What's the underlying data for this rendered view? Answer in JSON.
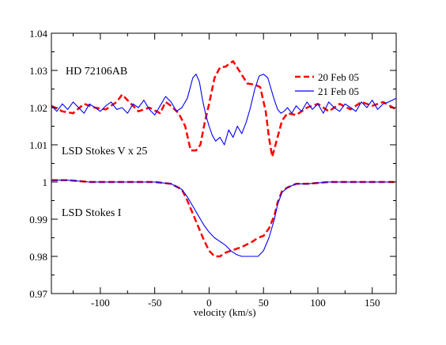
{
  "chart_data": {
    "type": "line",
    "title": "",
    "xlabel": "velocity (km/s)",
    "ylabel": "",
    "xlim": [
      -145,
      172
    ],
    "ylim": [
      0.97,
      1.04
    ],
    "xticks": [
      -100,
      -50,
      0,
      50,
      100,
      150
    ],
    "yticks": [
      0.97,
      0.98,
      0.99,
      1,
      1.01,
      1.02,
      1.03,
      1.04
    ],
    "xtick_labels": [
      "-100",
      "-50",
      "0",
      "50",
      "100",
      "150"
    ],
    "ytick_labels": [
      "0.97",
      "0.98",
      "0.99",
      "1",
      "1.01",
      "1.02",
      "1.03",
      "1.04"
    ],
    "grid": false,
    "legend_position": "top-right",
    "annotations": {
      "star": "HD 72106AB",
      "stokes_v": "LSD Stokes V x 25",
      "stokes_i": "LSD Stokes I"
    },
    "series": [
      {
        "name": "20 Feb 05",
        "color": "#ff0000",
        "dash": "dashed",
        "stokes_v": {
          "x": [
            -145,
            -135,
            -125,
            -115,
            -105,
            -95,
            -85,
            -80,
            -75,
            -65,
            -55,
            -45,
            -40,
            -35,
            -28,
            -22,
            -17,
            -12,
            -8,
            -4,
            0,
            5,
            10,
            15,
            22,
            28,
            35,
            42,
            47,
            52,
            55,
            58,
            62,
            67,
            72,
            80,
            90,
            100,
            110,
            120,
            130,
            140,
            150,
            160,
            172
          ],
          "y": [
            1.0205,
            1.019,
            1.0185,
            1.021,
            1.02,
            1.0195,
            1.0215,
            1.0235,
            1.022,
            1.019,
            1.02,
            1.0185,
            1.0215,
            1.0205,
            1.0185,
            1.015,
            1.0085,
            1.0085,
            1.01,
            1.016,
            1.021,
            1.028,
            1.0308,
            1.031,
            1.0325,
            1.0298,
            1.0265,
            1.0262,
            1.0255,
            1.019,
            1.012,
            1.0068,
            1.011,
            1.0165,
            1.0185,
            1.018,
            1.02,
            1.021,
            1.019,
            1.021,
            1.0195,
            1.0215,
            1.0205,
            1.0215,
            1.0195
          ]
        },
        "stokes_i": {
          "x": [
            -145,
            -130,
            -110,
            -90,
            -70,
            -50,
            -35,
            -25,
            -20,
            -15,
            -10,
            -5,
            0,
            5,
            10,
            15,
            20,
            30,
            40,
            45,
            50,
            55,
            60,
            63,
            67,
            72,
            80,
            90,
            110,
            130,
            150,
            172
          ],
          "y": [
            1.0005,
            1.0005,
            1.0,
            1.0,
            1.0,
            1.0,
            0.9995,
            0.998,
            0.995,
            0.9915,
            0.988,
            0.9845,
            0.9815,
            0.98,
            0.98,
            0.981,
            0.9815,
            0.9825,
            0.984,
            0.985,
            0.9855,
            0.9875,
            0.991,
            0.9945,
            0.9975,
            0.9985,
            0.9995,
            0.9995,
            1.0,
            1.0,
            1.0,
            1.0
          ]
        }
      },
      {
        "name": "21 Feb 05",
        "color": "#0000ff",
        "dash": "solid",
        "stokes_v": {
          "x": [
            -145,
            -140,
            -135,
            -130,
            -125,
            -120,
            -115,
            -110,
            -105,
            -100,
            -95,
            -90,
            -85,
            -80,
            -75,
            -70,
            -65,
            -60,
            -55,
            -50,
            -45,
            -40,
            -35,
            -30,
            -25,
            -20,
            -15,
            -12,
            -9,
            -6,
            -3,
            0,
            3,
            6,
            10,
            14,
            18,
            22,
            26,
            30,
            34,
            38,
            42,
            46,
            50,
            54,
            57,
            60,
            63,
            66,
            69,
            72,
            76,
            80,
            85,
            90,
            95,
            100,
            105,
            110,
            115,
            120,
            125,
            130,
            135,
            140,
            145,
            150,
            155,
            160,
            165,
            172
          ],
          "y": [
            1.0205,
            1.019,
            1.021,
            1.0195,
            1.0215,
            1.02,
            1.0185,
            1.021,
            1.02,
            1.019,
            1.0205,
            1.0215,
            1.0195,
            1.02,
            1.0185,
            1.021,
            1.02,
            1.022,
            1.0195,
            1.018,
            1.0205,
            1.023,
            1.0215,
            1.019,
            1.02,
            1.0225,
            1.028,
            1.029,
            1.027,
            1.022,
            1.018,
            1.015,
            1.0125,
            1.011,
            1.012,
            1.01,
            1.014,
            1.012,
            1.015,
            1.013,
            1.016,
            1.02,
            1.025,
            1.0285,
            1.029,
            1.028,
            1.025,
            1.022,
            1.0195,
            1.0185,
            1.019,
            1.02,
            1.0185,
            1.0205,
            1.019,
            1.0215,
            1.0195,
            1.021,
            1.0185,
            1.0215,
            1.02,
            1.019,
            1.021,
            1.02,
            1.019,
            1.0215,
            1.02,
            1.022,
            1.0195,
            1.021,
            1.0215,
            1.0225
          ]
        },
        "stokes_i": {
          "x": [
            -145,
            -130,
            -110,
            -90,
            -70,
            -50,
            -35,
            -25,
            -20,
            -15,
            -10,
            -5,
            0,
            5,
            10,
            15,
            20,
            25,
            30,
            35,
            40,
            45,
            50,
            55,
            60,
            63,
            67,
            72,
            80,
            90,
            110,
            130,
            150,
            172
          ],
          "y": [
            1.0005,
            1.0005,
            1.0,
            1.0,
            1.0,
            1.0,
            0.9995,
            0.998,
            0.996,
            0.9935,
            0.991,
            0.9885,
            0.9865,
            0.985,
            0.984,
            0.983,
            0.9815,
            0.9805,
            0.98,
            0.98,
            0.98,
            0.98,
            0.9815,
            0.985,
            0.99,
            0.994,
            0.9972,
            0.9985,
            0.9995,
            0.9995,
            1.0,
            1.0,
            1.0,
            1.0
          ]
        }
      }
    ]
  }
}
